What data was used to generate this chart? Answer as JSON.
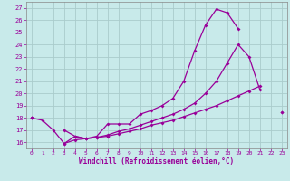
{
  "title": "",
  "xlabel": "Windchill (Refroidissement éolien,°C)",
  "ylabel": "",
  "background_color": "#c8eaea",
  "line_color": "#990099",
  "grid_color": "#aacccc",
  "x": [
    0,
    1,
    2,
    3,
    4,
    5,
    6,
    7,
    8,
    9,
    10,
    11,
    12,
    13,
    14,
    15,
    16,
    17,
    18,
    19,
    20,
    21,
    22,
    23
  ],
  "line1": [
    18.0,
    17.8,
    17.0,
    15.9,
    16.5,
    16.3,
    16.5,
    17.5,
    17.5,
    17.5,
    18.3,
    18.6,
    19.0,
    19.6,
    21.0,
    23.5,
    25.6,
    26.9,
    26.6,
    25.3,
    null,
    null,
    null,
    null
  ],
  "line2": [
    18.0,
    null,
    null,
    17.0,
    16.5,
    16.3,
    16.4,
    16.6,
    16.9,
    17.1,
    17.4,
    17.7,
    18.0,
    18.3,
    18.7,
    19.2,
    20.0,
    21.0,
    22.5,
    24.0,
    23.0,
    20.3,
    null,
    18.5
  ],
  "line3": [
    18.0,
    null,
    null,
    15.9,
    16.2,
    16.3,
    16.4,
    16.5,
    16.7,
    16.9,
    17.1,
    17.4,
    17.6,
    17.8,
    18.1,
    18.4,
    18.7,
    19.0,
    19.4,
    19.8,
    20.2,
    20.6,
    null,
    18.5
  ],
  "ylim": [
    15.5,
    27.5
  ],
  "yticks": [
    16,
    17,
    18,
    19,
    20,
    21,
    22,
    23,
    24,
    25,
    26,
    27
  ],
  "xlim": [
    -0.5,
    23.5
  ],
  "xticks": [
    0,
    1,
    2,
    3,
    4,
    5,
    6,
    7,
    8,
    9,
    10,
    11,
    12,
    13,
    14,
    15,
    16,
    17,
    18,
    19,
    20,
    21,
    22,
    23
  ]
}
